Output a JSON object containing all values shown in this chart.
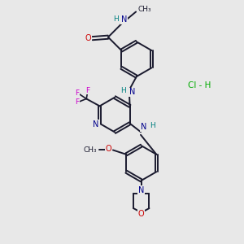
{
  "bg_color": "#e8e8e8",
  "bond_color": "#1a1a2e",
  "atom_colors": {
    "N": "#00008b",
    "O": "#cc0000",
    "F": "#cc00cc",
    "Cl": "#00aa00",
    "H": "#008080",
    "C": "#1a1a2e"
  }
}
